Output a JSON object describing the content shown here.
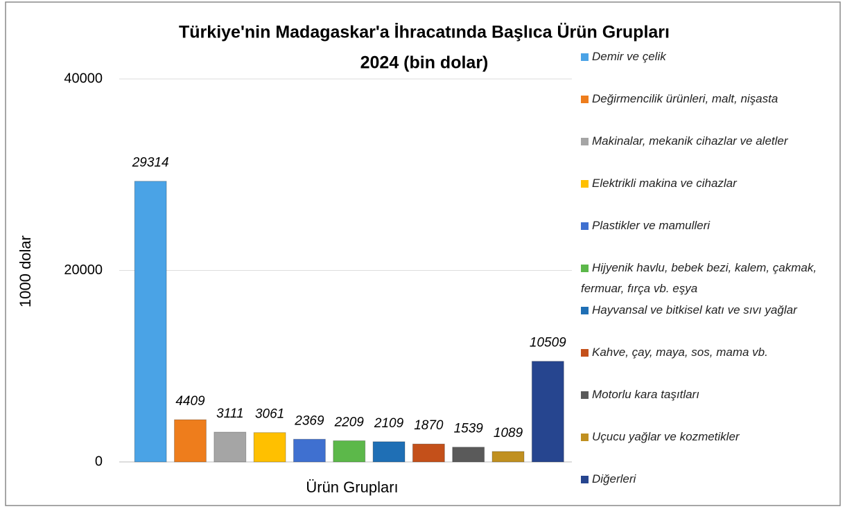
{
  "chart_data": {
    "type": "bar",
    "title": [
      "Türkiye'nin Madagaskar'a İhracatında Başlıca Ürün Grupları",
      "2024 (bin dolar)"
    ],
    "y_label": "1000 dolar",
    "x_label": "Ürün Grupları",
    "categories": [
      "Demir ve çelik",
      "Değirmencilik ürünleri, malt, nişasta",
      "Makinalar, mekanik cihazlar ve aletler",
      "Elektrikli makina ve cihazlar",
      "Plastikler ve mamulleri",
      "Hijyenik havlu, bebek bezi, kalem, çakmak, fermuar, fırça vb. eşya",
      "Hayvansal ve bitkisel katı ve sıvı yağlar",
      "Kahve, çay, maya, sos, mama vb.",
      "Motorlu kara taşıtları",
      "Uçucu yağlar ve kozmetikler",
      "Diğerleri"
    ],
    "values": [
      29314,
      4409,
      3111,
      3061,
      2369,
      2209,
      2109,
      1870,
      1539,
      1089,
      10509
    ],
    "colors": [
      "#4aa3e6",
      "#ee7d1c",
      "#a5a5a5",
      "#ffc000",
      "#3f70d0",
      "#5cb84a",
      "#1f6fb5",
      "#c4501a",
      "#5a5a5a",
      "#c09020",
      "#26458f"
    ],
    "ylim": [
      0,
      40000
    ],
    "yticks": [
      0,
      20000,
      40000
    ],
    "grid": true,
    "legend": "right"
  }
}
